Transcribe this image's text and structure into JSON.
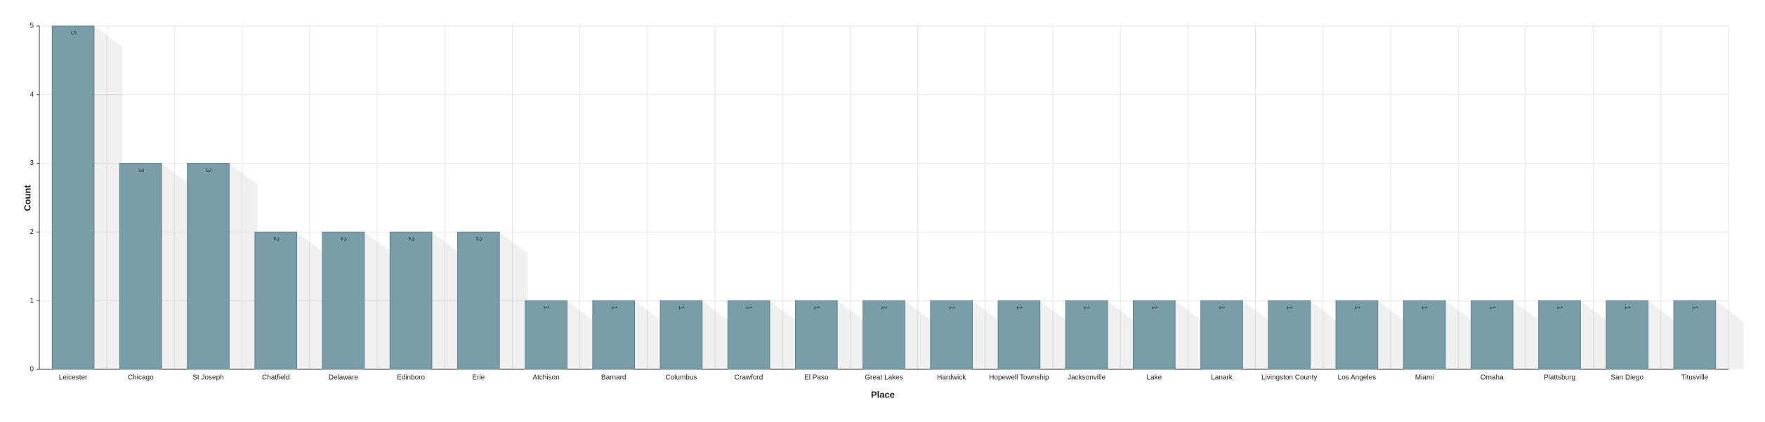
{
  "chart_data": {
    "type": "bar",
    "x_label": "Place",
    "y_label": "Count",
    "categories": [
      "Leicester",
      "Chicago",
      "St Joseph",
      "Chatfield",
      "Delaware",
      "Edinboro",
      "Erie",
      "Atchison",
      "Barnard",
      "Columbus",
      "Crawford",
      "El Paso",
      "Great Lakes",
      "Hardwick",
      "Hopewell Township",
      "Jacksonville",
      "Lake",
      "Lanark",
      "Livingston County",
      "Los Angeles",
      "Miami",
      "Omaha",
      "Plattsburg",
      "San Diego",
      "Titusville"
    ],
    "values": [
      5,
      3,
      3,
      2,
      2,
      2,
      2,
      1,
      1,
      1,
      1,
      1,
      1,
      1,
      1,
      1,
      1,
      1,
      1,
      1,
      1,
      1,
      1,
      1,
      1
    ],
    "color": "#7a9ea8",
    "ylim": [
      0,
      5
    ],
    "yticks": [
      0,
      1,
      2,
      3,
      4,
      5
    ],
    "grid": true
  }
}
